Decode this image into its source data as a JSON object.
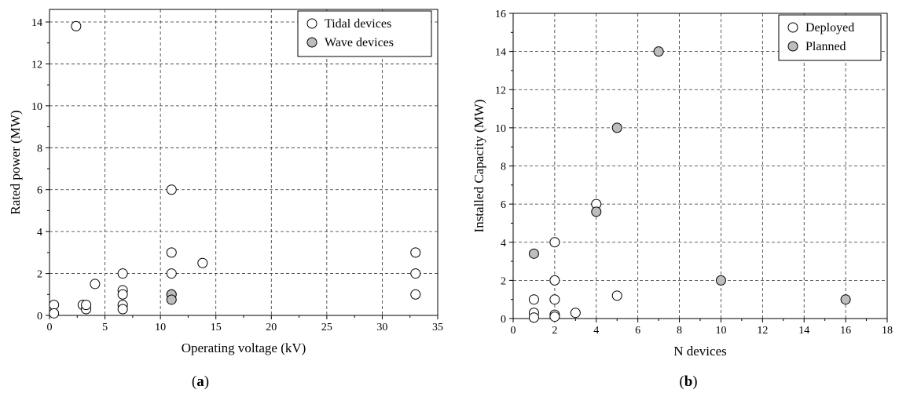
{
  "chart_data": [
    {
      "type": "scatter",
      "xlabel": "Operating voltage (kV)",
      "ylabel": "Rated power (MW)",
      "xlim": [
        0,
        35
      ],
      "ylim": [
        0,
        14.6
      ],
      "xticks": [
        "0",
        "5",
        "10",
        "15",
        "20",
        "25",
        "30",
        "35"
      ],
      "yticks": [
        "0",
        "2",
        "4",
        "6",
        "8",
        "10",
        "12",
        "14"
      ],
      "grid": true,
      "legend_position": "top-right",
      "panel_label": {
        "open": "(",
        "letter": "a",
        "close": ")"
      },
      "series": [
        {
          "name": "Tidal devices",
          "color": "#ffffff",
          "points": [
            [
              0.4,
              0.5
            ],
            [
              0.4,
              0.1
            ],
            [
              2.4,
              13.8
            ],
            [
              3.0,
              0.5
            ],
            [
              3.3,
              0.3
            ],
            [
              3.3,
              0.5
            ],
            [
              4.1,
              1.5
            ],
            [
              6.6,
              2.0
            ],
            [
              6.6,
              1.2
            ],
            [
              6.6,
              1.0
            ],
            [
              6.6,
              0.5
            ],
            [
              6.6,
              0.3
            ],
            [
              11.0,
              6.0
            ],
            [
              11.0,
              3.0
            ],
            [
              11.0,
              2.0
            ],
            [
              11.0,
              1.0
            ],
            [
              13.8,
              2.5
            ],
            [
              33.0,
              3.0
            ],
            [
              33.0,
              2.0
            ],
            [
              33.0,
              1.0
            ]
          ]
        },
        {
          "name": "Wave devices",
          "color": "#bdbdbd",
          "points": [
            [
              11.0,
              1.0
            ],
            [
              11.0,
              0.75
            ]
          ]
        }
      ]
    },
    {
      "type": "scatter",
      "xlabel": "N devices",
      "ylabel": "Installed Capacity (MW)",
      "xlim": [
        0,
        18
      ],
      "ylim": [
        0,
        16
      ],
      "xticks": [
        "0",
        "2",
        "4",
        "6",
        "8",
        "10",
        "12",
        "14",
        "16",
        "18"
      ],
      "yticks": [
        "0",
        "2",
        "4",
        "6",
        "8",
        "10",
        "12",
        "14",
        "16"
      ],
      "grid": true,
      "legend_position": "top-right",
      "panel_label": {
        "open": "(",
        "letter": "b",
        "close": ")"
      },
      "series": [
        {
          "name": "Deployed",
          "color": "#ffffff",
          "points": [
            [
              1,
              1.0
            ],
            [
              1,
              0.3
            ],
            [
              1,
              0.05
            ],
            [
              2,
              4.0
            ],
            [
              2,
              2.0
            ],
            [
              2,
              1.0
            ],
            [
              2,
              0.2
            ],
            [
              2,
              0.1
            ],
            [
              3,
              0.3
            ],
            [
              4,
              6.0
            ],
            [
              5,
              1.2
            ]
          ]
        },
        {
          "name": "Planned",
          "color": "#bdbdbd",
          "points": [
            [
              1,
              3.4
            ],
            [
              4,
              5.6
            ],
            [
              5,
              10.0
            ],
            [
              7,
              14.0
            ],
            [
              10,
              2.0
            ],
            [
              16,
              1.0
            ]
          ]
        }
      ]
    }
  ]
}
